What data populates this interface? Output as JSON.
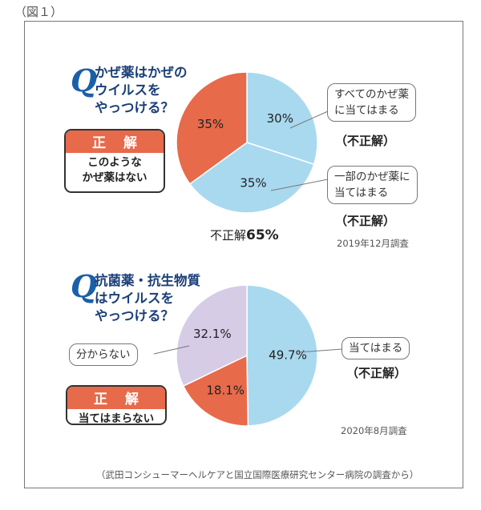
{
  "figure_label": "（図１）",
  "source_note": "（武田コンシューマーヘルケアと国立国際医療研究センター病院の調査から）",
  "chart_data": [
    {
      "type": "pie",
      "title": "",
      "question": {
        "mark": "Q",
        "lines": [
          "かぜ薬はかぜの",
          "ウイルスを",
          "やっつける？"
        ]
      },
      "slices": [
        {
          "key": "all",
          "value": 30,
          "label": "30%",
          "color": "#a9d9ef"
        },
        {
          "key": "some",
          "value": 35,
          "label": "35%",
          "color": "#a9d9ef"
        },
        {
          "key": "none",
          "value": 35,
          "label": "35%",
          "color": "#e76a4b"
        }
      ],
      "callouts": [
        {
          "lines": [
            "すべてのかぜ薬",
            "に当てはまる"
          ],
          "verdict": "（不正解）"
        },
        {
          "lines": [
            "一部のかぜ薬に",
            "当てはまる"
          ],
          "verdict": "（不正解）"
        }
      ],
      "answer": {
        "heading": "正 解",
        "lines": [
          "このような",
          "かぜ薬はない"
        ]
      },
      "total": {
        "prefix": "不正解",
        "value": "65%"
      },
      "survey_date": "2019年12月調査"
    },
    {
      "type": "pie",
      "title": "",
      "question": {
        "mark": "Q",
        "lines": [
          "抗菌薬・抗生物質",
          "はウイルスを",
          "やっつける？"
        ]
      },
      "slices": [
        {
          "key": "applies",
          "value": 49.7,
          "label": "49.7%",
          "color": "#a9d9ef"
        },
        {
          "key": "not_applies",
          "value": 18.1,
          "label": "18.1%",
          "color": "#e76a4b"
        },
        {
          "key": "unknown",
          "value": 32.1,
          "label": "32.1%",
          "color": "#d6cce6"
        }
      ],
      "callouts": [
        {
          "lines": [
            "当てはまる"
          ],
          "verdict": "（不正解）"
        },
        {
          "lines": [
            "分からない"
          ]
        }
      ],
      "answer": {
        "heading": "正 解",
        "lines": [
          "当てはまらない"
        ]
      },
      "survey_date": "2020年8月調査"
    }
  ]
}
